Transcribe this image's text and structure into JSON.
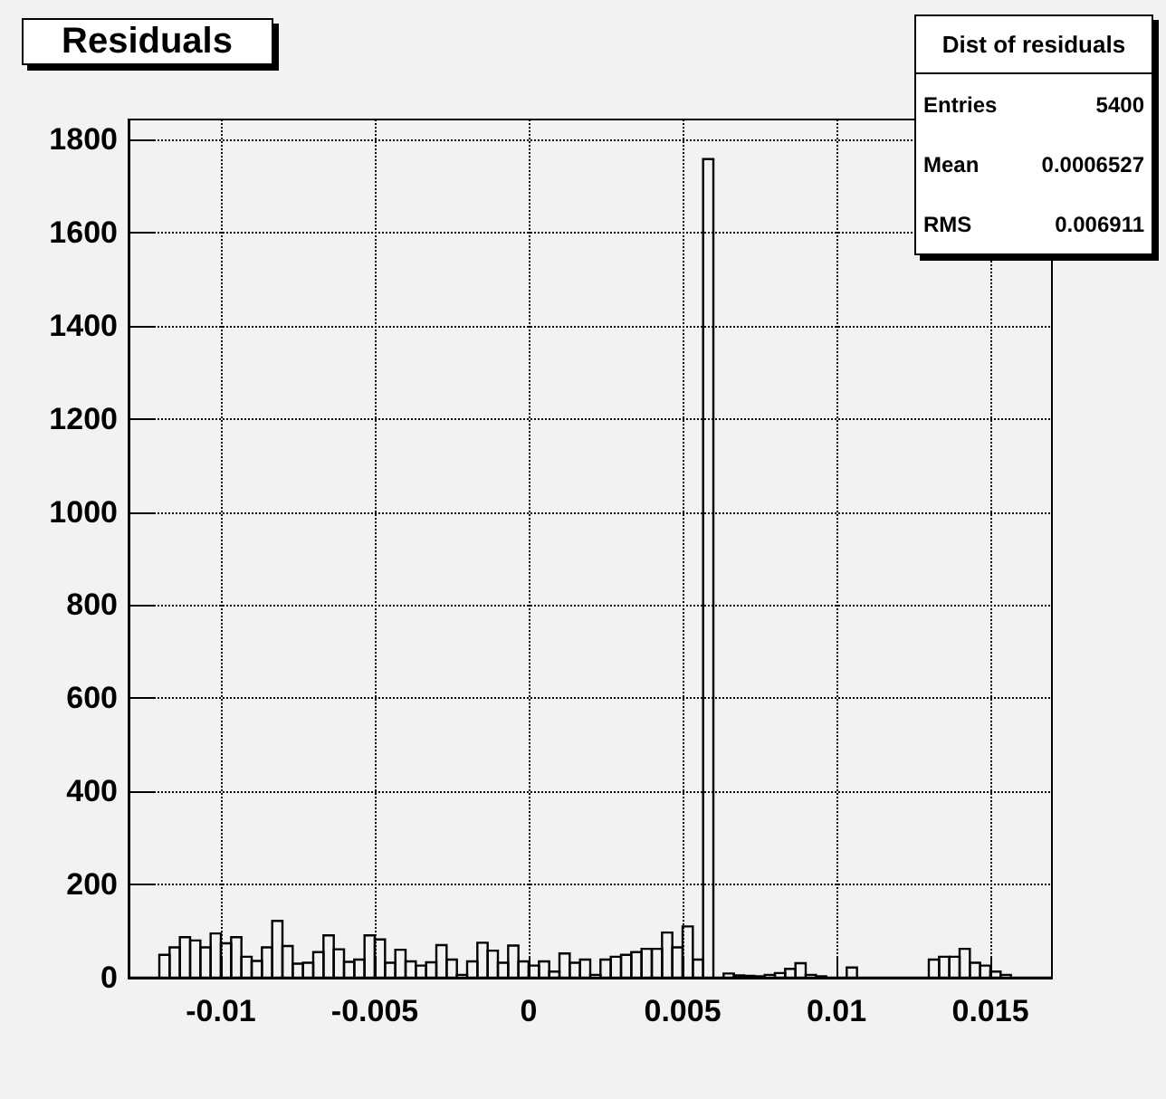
{
  "chart_data": {
    "type": "histogram",
    "title": "Residuals",
    "annotations": [
      "Dist of residuals",
      "Entries 5400",
      "Mean 0.0006527",
      "RMS 0.006911"
    ],
    "bins": [
      -0.013,
      -0.012667,
      -0.012333,
      -0.012,
      -0.011667,
      -0.011333,
      -0.011,
      -0.010667,
      -0.010333,
      -0.01,
      -0.009667,
      -0.009333,
      -0.009,
      -0.008667,
      -0.008333,
      -0.008,
      -0.007667,
      -0.007333,
      -0.007,
      -0.006667,
      -0.006333,
      -0.006,
      -0.005667,
      -0.005333,
      -0.005,
      -0.004667,
      -0.004333,
      -0.004,
      -0.003667,
      -0.003333,
      -0.003,
      -0.002667,
      -0.002333,
      -0.002,
      -0.001667,
      -0.001333,
      -0.001,
      -0.000667,
      -0.000333,
      0,
      0.000333,
      0.000667,
      0.001,
      0.001333,
      0.001667,
      0.002,
      0.002333,
      0.002667,
      0.003,
      0.003333,
      0.003667,
      0.004,
      0.004333,
      0.004667,
      0.005,
      0.005333,
      0.005667,
      0.006,
      0.006333,
      0.006667,
      0.007,
      0.007333,
      0.007667,
      0.008,
      0.008333,
      0.008667,
      0.009,
      0.009333,
      0.009667,
      0.01,
      0.010333,
      0.010667,
      0.011,
      0.011333,
      0.011667,
      0.012,
      0.012333,
      0.012667,
      0.013,
      0.013333,
      0.013667,
      0.014,
      0.014333,
      0.014667,
      0.015,
      0.015333,
      0.015667,
      0.016,
      0.016333,
      0.016667,
      0.017
    ],
    "values": [
      0,
      0,
      0,
      49,
      65,
      87,
      80,
      65,
      95,
      74,
      87,
      45,
      36,
      65,
      122,
      68,
      30,
      32,
      55,
      91,
      61,
      34,
      39,
      91,
      82,
      32,
      60,
      35,
      26,
      33,
      70,
      39,
      6,
      35,
      75,
      58,
      32,
      69,
      35,
      26,
      35,
      13,
      52,
      32,
      39,
      6,
      39,
      45,
      49,
      55,
      62,
      62,
      97,
      65,
      110,
      39,
      1758,
      0,
      9,
      5,
      4,
      3,
      6,
      10,
      19,
      31,
      6,
      3,
      0,
      0,
      22,
      0,
      0,
      0,
      0,
      0,
      0,
      0,
      39,
      45,
      45,
      62,
      32,
      26,
      13,
      6,
      0,
      0,
      0,
      0
    ],
    "color": "#000000",
    "xlim": [
      -0.013,
      0.017
    ],
    "xticks": [
      -0.01,
      -0.005,
      0,
      0.005,
      0.01,
      0.015
    ],
    "ylim": [
      0,
      1843
    ],
    "yticks": [
      0,
      200,
      400,
      600,
      800,
      1000,
      1200,
      1400,
      1600,
      1800
    ],
    "grid": true
  }
}
